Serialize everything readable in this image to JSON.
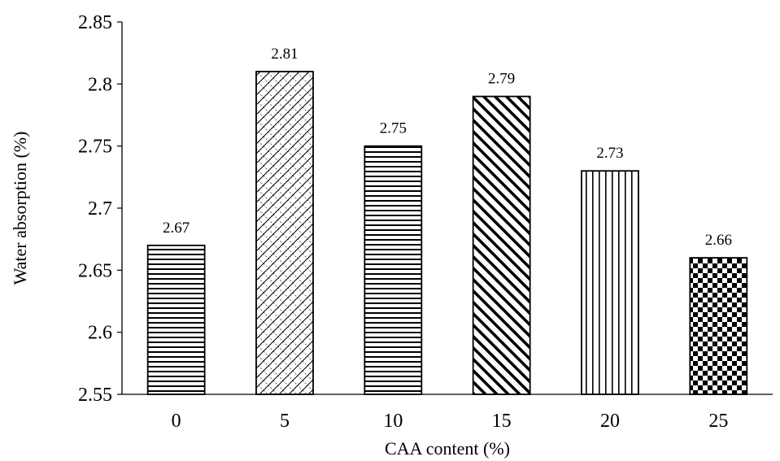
{
  "chart_data": {
    "type": "bar",
    "categories": [
      "0",
      "5",
      "10",
      "15",
      "20",
      "25"
    ],
    "values": [
      2.67,
      2.81,
      2.75,
      2.79,
      2.73,
      2.66
    ],
    "data_labels": [
      "2.67",
      "2.81",
      "2.75",
      "2.79",
      "2.73",
      "2.66"
    ],
    "xlabel": "CAA content (%)",
    "ylabel": "Water absorption (%)",
    "ylim": [
      2.55,
      2.85
    ],
    "yticks": [
      2.55,
      2.6,
      2.65,
      2.7,
      2.75,
      2.8,
      2.85
    ],
    "ytick_labels": [
      "2.55",
      "2.6",
      "2.65",
      "2.7",
      "2.75",
      "2.8",
      "2.85"
    ],
    "grid": false,
    "legend": "none",
    "bar_fill_patterns": [
      "horizontal-lines",
      "diagonal-lattice",
      "horizontal-lines",
      "diagonal-stripes",
      "vertical-lines",
      "checkerboard"
    ],
    "colors": {
      "bar_stroke": "#000000",
      "pattern": "#000000",
      "background": "#ffffff"
    }
  }
}
